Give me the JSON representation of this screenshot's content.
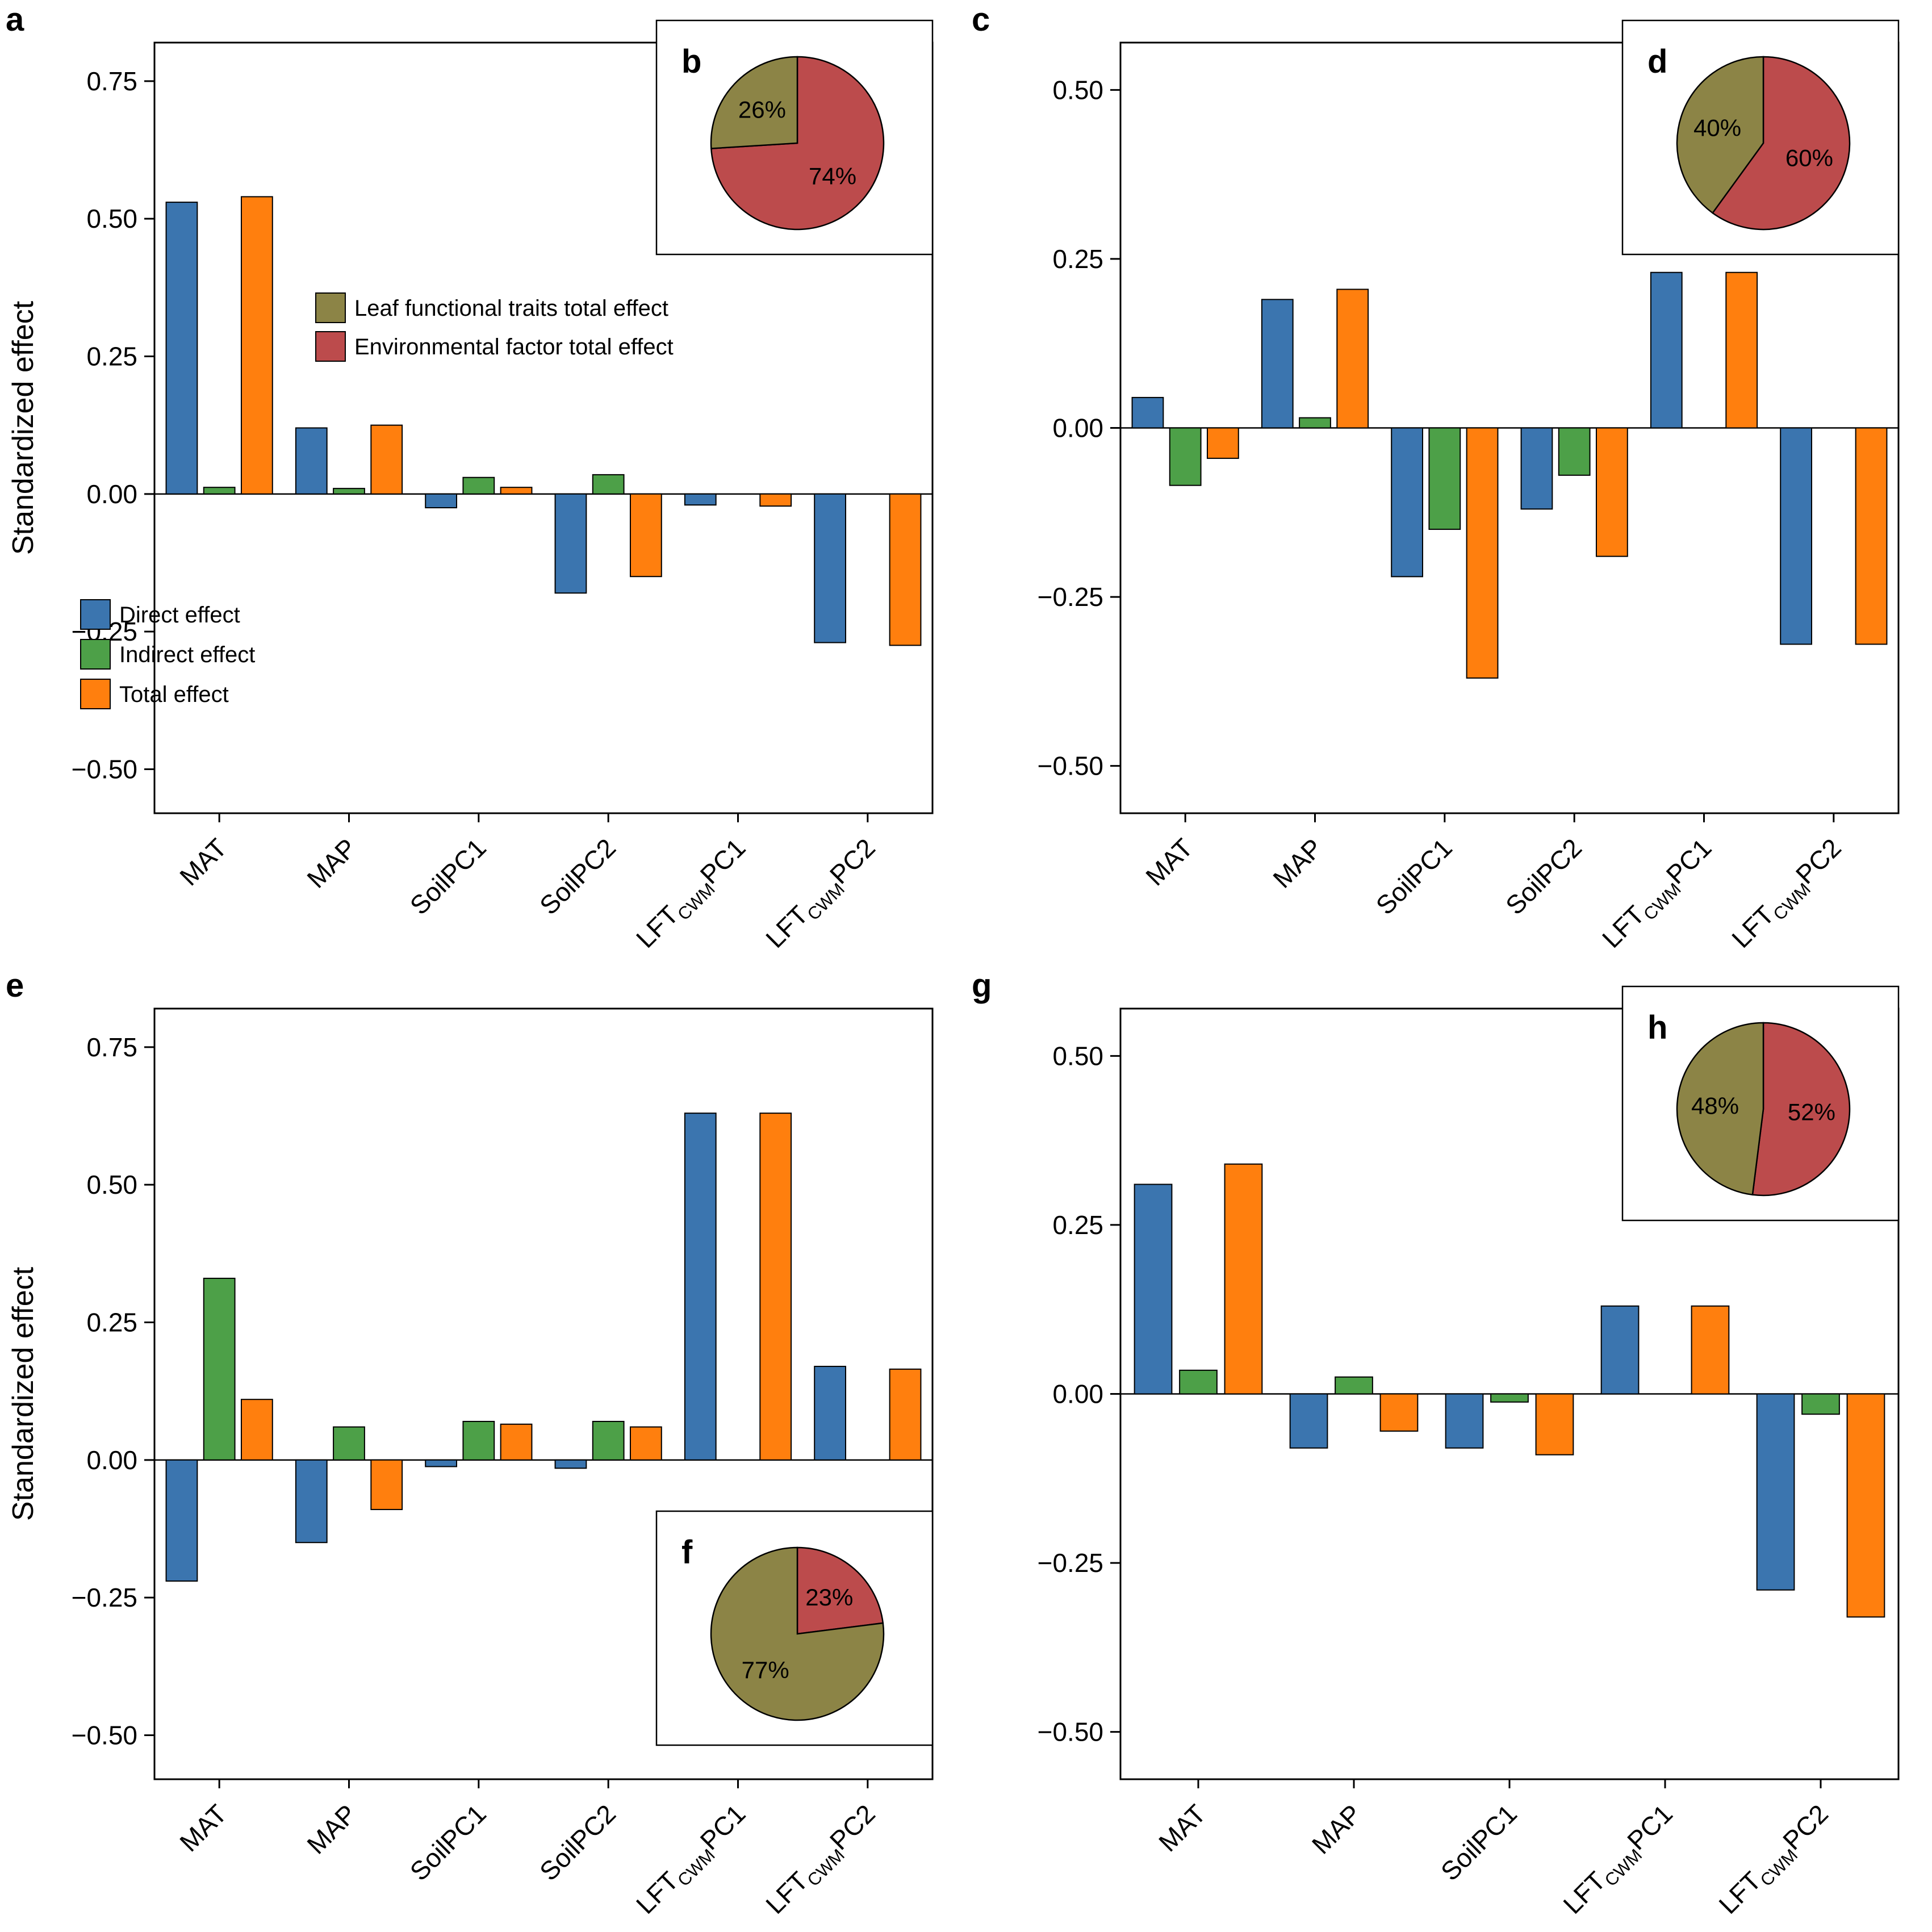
{
  "figure": {
    "ylabel": "Standardized effect",
    "colors": {
      "direct": "#3B75AF",
      "indirect": "#4DA048",
      "total": "#FF7F0E",
      "lft": "#8C8446",
      "env": "#BC4B4C"
    },
    "bar_legend": [
      {
        "key": "direct",
        "label": "Direct effect"
      },
      {
        "key": "indirect",
        "label": "Indirect effect"
      },
      {
        "key": "total",
        "label": "Total effect"
      }
    ],
    "pie_legend": [
      {
        "key": "lft",
        "label": "Leaf functional traits total effect"
      },
      {
        "key": "env",
        "label": "Environmental factor total effect"
      }
    ]
  },
  "chart_data": [
    {
      "panel_label": "a",
      "type": "bar",
      "ylim": [
        -0.58,
        0.82
      ],
      "yticks": [
        0.75,
        0.5,
        0.25,
        0,
        -0.25,
        -0.5
      ],
      "show_ylabel": true,
      "show_legend": true,
      "categories": [
        {
          "text": "MAT"
        },
        {
          "text": "MAP"
        },
        {
          "text": "SoilPC1"
        },
        {
          "text": "SoilPC2"
        },
        {
          "pre": "LFT",
          "sub": "CWM",
          "post": "PC1"
        },
        {
          "pre": "LFT",
          "sub": "CWM",
          "post": "PC2"
        }
      ],
      "series": [
        {
          "name": "Direct effect",
          "key": "direct",
          "values": [
            0.53,
            0.12,
            -0.025,
            -0.18,
            -0.02,
            -0.27
          ]
        },
        {
          "name": "Indirect effect",
          "key": "indirect",
          "values": [
            0.012,
            0.01,
            0.03,
            0.035,
            null,
            null
          ]
        },
        {
          "name": "Total effect",
          "key": "total",
          "values": [
            0.54,
            0.125,
            0.012,
            -0.15,
            -0.022,
            -0.275
          ]
        }
      ],
      "inset_pie": {
        "panel_label": "b",
        "type": "pie",
        "position": "top-right",
        "slices": [
          {
            "key": "lft",
            "label": "Leaf functional traits total effect",
            "pct": 26
          },
          {
            "key": "env",
            "label": "Environmental factor total effect",
            "pct": 74
          }
        ]
      }
    },
    {
      "panel_label": "c",
      "type": "bar",
      "ylim": [
        -0.57,
        0.57
      ],
      "yticks": [
        0.5,
        0.25,
        0,
        -0.25,
        -0.5
      ],
      "show_ylabel": false,
      "show_legend": false,
      "categories": [
        {
          "text": "MAT"
        },
        {
          "text": "MAP"
        },
        {
          "text": "SoilPC1"
        },
        {
          "text": "SoilPC2"
        },
        {
          "pre": "LFT",
          "sub": "CWM",
          "post": "PC1"
        },
        {
          "pre": "LFT",
          "sub": "CWM",
          "post": "PC2"
        }
      ],
      "series": [
        {
          "name": "Direct effect",
          "key": "direct",
          "values": [
            0.045,
            0.19,
            -0.22,
            -0.12,
            0.23,
            -0.32
          ]
        },
        {
          "name": "Indirect effect",
          "key": "indirect",
          "values": [
            -0.085,
            0.015,
            -0.15,
            -0.07,
            null,
            null
          ]
        },
        {
          "name": "Total effect",
          "key": "total",
          "values": [
            -0.045,
            0.205,
            -0.37,
            -0.19,
            0.23,
            -0.32
          ]
        }
      ],
      "inset_pie": {
        "panel_label": "d",
        "type": "pie",
        "position": "top-right",
        "slices": [
          {
            "key": "lft",
            "label": "Leaf functional traits total effect",
            "pct": 40
          },
          {
            "key": "env",
            "label": "Environmental factor total effect",
            "pct": 60
          }
        ]
      }
    },
    {
      "panel_label": "e",
      "type": "bar",
      "ylim": [
        -0.58,
        0.82
      ],
      "yticks": [
        0.75,
        0.5,
        0.25,
        0,
        -0.25,
        -0.5
      ],
      "show_ylabel": true,
      "show_legend": false,
      "categories": [
        {
          "text": "MAT"
        },
        {
          "text": "MAP"
        },
        {
          "text": "SoilPC1"
        },
        {
          "text": "SoilPC2"
        },
        {
          "pre": "LFT",
          "sub": "CWM",
          "post": "PC1"
        },
        {
          "pre": "LFT",
          "sub": "CWM",
          "post": "PC2"
        }
      ],
      "series": [
        {
          "name": "Direct effect",
          "key": "direct",
          "values": [
            -0.22,
            -0.15,
            -0.012,
            -0.015,
            0.63,
            0.17
          ]
        },
        {
          "name": "Indirect effect",
          "key": "indirect",
          "values": [
            0.33,
            0.06,
            0.07,
            0.07,
            null,
            null
          ]
        },
        {
          "name": "Total effect",
          "key": "total",
          "values": [
            0.11,
            -0.09,
            0.065,
            0.06,
            0.63,
            0.165
          ]
        }
      ],
      "inset_pie": {
        "panel_label": "f",
        "type": "pie",
        "position": "bottom-right",
        "slices": [
          {
            "key": "lft",
            "label": "Leaf functional traits total effect",
            "pct": 77
          },
          {
            "key": "env",
            "label": "Environmental factor total effect",
            "pct": 23
          }
        ]
      }
    },
    {
      "panel_label": "g",
      "type": "bar",
      "ylim": [
        -0.57,
        0.57
      ],
      "yticks": [
        0.5,
        0.25,
        0,
        -0.25,
        -0.5
      ],
      "show_ylabel": false,
      "show_legend": false,
      "categories": [
        {
          "text": "MAT"
        },
        {
          "text": "MAP"
        },
        {
          "text": "SoilPC1"
        },
        {
          "pre": "LFT",
          "sub": "CWM",
          "post": "PC1"
        },
        {
          "pre": "LFT",
          "sub": "CWM",
          "post": "PC2"
        }
      ],
      "series": [
        {
          "name": "Direct effect",
          "key": "direct",
          "values": [
            0.31,
            -0.08,
            -0.08,
            0.13,
            -0.29
          ]
        },
        {
          "name": "Indirect effect",
          "key": "indirect",
          "values": [
            0.035,
            0.025,
            -0.012,
            null,
            -0.03
          ]
        },
        {
          "name": "Total effect",
          "key": "total",
          "values": [
            0.34,
            -0.055,
            -0.09,
            0.13,
            -0.33
          ]
        }
      ],
      "inset_pie": {
        "panel_label": "h",
        "type": "pie",
        "position": "top-right",
        "slices": [
          {
            "key": "lft",
            "label": "Leaf functional traits total effect",
            "pct": 48
          },
          {
            "key": "env",
            "label": "Environmental factor total effect",
            "pct": 52
          }
        ]
      }
    }
  ]
}
